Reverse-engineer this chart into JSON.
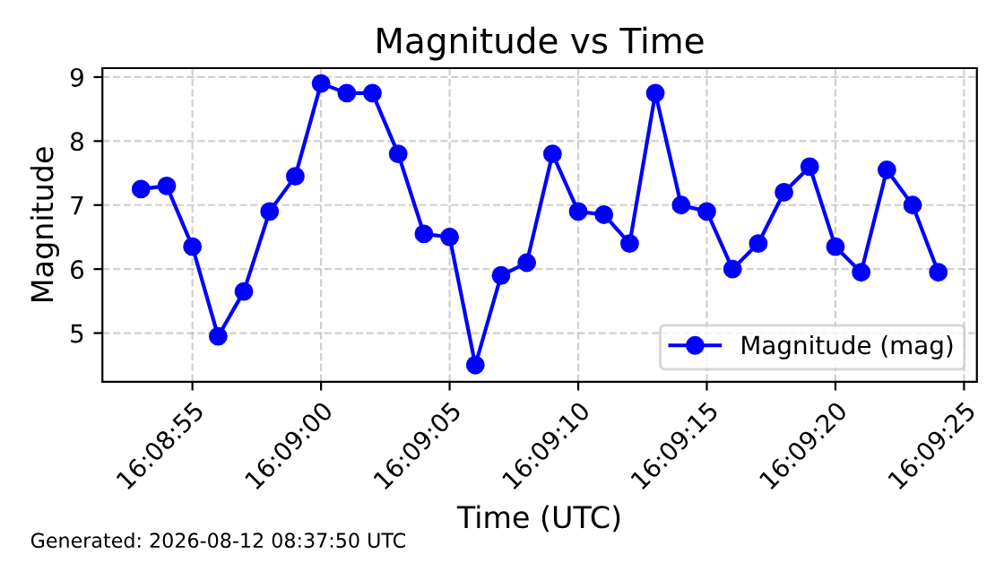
{
  "chart_data": {
    "type": "line",
    "title": "Magnitude vs Time",
    "xlabel": "Time (UTC)",
    "ylabel": "Magnitude",
    "annotations": [
      "Generated: 2026-08-12 08:37:50 UTC"
    ],
    "x": [
      "2026-08-12T16:08:53",
      "2026-08-12T16:08:54",
      "2026-08-12T16:08:55",
      "2026-08-12T16:08:56",
      "2026-08-12T16:08:57",
      "2026-08-12T16:08:58",
      "2026-08-12T16:08:59",
      "2026-08-12T16:09:00",
      "2026-08-12T16:09:01",
      "2026-08-12T16:09:02",
      "2026-08-12T16:09:03",
      "2026-08-12T16:09:04",
      "2026-08-12T16:09:05",
      "2026-08-12T16:09:06",
      "2026-08-12T16:09:07",
      "2026-08-12T16:09:08",
      "2026-08-12T16:09:09",
      "2026-08-12T16:09:10",
      "2026-08-12T16:09:11",
      "2026-08-12T16:09:12",
      "2026-08-12T16:09:13",
      "2026-08-12T16:09:14",
      "2026-08-12T16:09:15",
      "2026-08-12T16:09:16",
      "2026-08-12T16:09:17",
      "2026-08-12T16:09:18",
      "2026-08-12T16:09:19",
      "2026-08-12T16:09:20",
      "2026-08-12T16:09:21",
      "2026-08-12T16:09:22",
      "2026-08-12T16:09:23",
      "2026-08-12T16:09:24"
    ],
    "series": [
      {
        "name": "Magnitude (mag)",
        "color": "#0000ff",
        "values": [
          7.25,
          7.3,
          6.35,
          4.95,
          5.65,
          6.9,
          7.45,
          8.9,
          8.75,
          8.75,
          7.8,
          6.55,
          6.5,
          4.5,
          5.9,
          6.1,
          7.8,
          6.9,
          6.85,
          6.4,
          8.75,
          7.0,
          6.9,
          6.0,
          6.4,
          7.2,
          7.6,
          6.35,
          5.95,
          7.55,
          7.0,
          5.95
        ]
      }
    ],
    "xlim": [
      "2026-08-12T16:08:51.5",
      "2026-08-12T16:09:25.5"
    ],
    "xticks": [
      {
        "value": "2026-08-12T16:08:55",
        "label": "16:08:55"
      },
      {
        "value": "2026-08-12T16:09:00",
        "label": "16:09:00"
      },
      {
        "value": "2026-08-12T16:09:05",
        "label": "16:09:05"
      },
      {
        "value": "2026-08-12T16:09:10",
        "label": "16:09:10"
      },
      {
        "value": "2026-08-12T16:09:15",
        "label": "16:09:15"
      },
      {
        "value": "2026-08-12T16:09:20",
        "label": "16:09:20"
      },
      {
        "value": "2026-08-12T16:09:25",
        "label": "16:09:25"
      }
    ],
    "ylim": [
      4.24,
      9.14
    ],
    "yticks": [
      5,
      6,
      7,
      8,
      9
    ],
    "grid": true,
    "legend": "bottom right",
    "marker": "circle",
    "line_style": "solid"
  }
}
